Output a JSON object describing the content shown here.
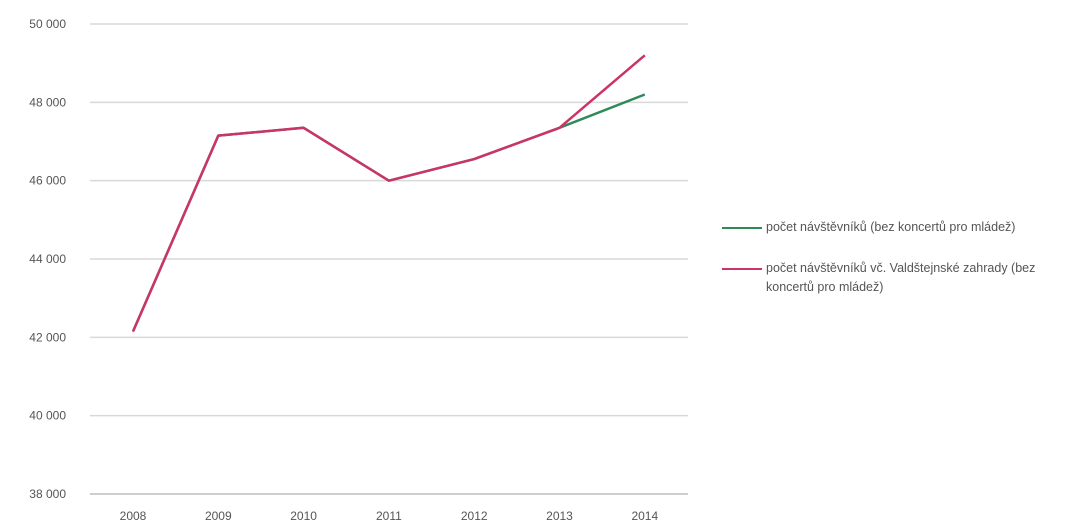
{
  "chart_data": {
    "type": "line",
    "x": [
      "2008",
      "2009",
      "2010",
      "2011",
      "2012",
      "2013",
      "2014"
    ],
    "ylim": [
      38000,
      50000
    ],
    "yticks": [
      38000,
      40000,
      42000,
      44000,
      46000,
      48000,
      50000
    ],
    "ytick_labels": [
      "38 000",
      "40 000",
      "42 000",
      "44 000",
      "46 000",
      "48 000",
      "50 000"
    ],
    "grid": true,
    "legend_position": "right",
    "series": [
      {
        "name": "počet návštěvníků (bez koncertů pro mládež)",
        "color": "#2e8b57",
        "values": [
          42150,
          47150,
          47350,
          46000,
          46550,
          47350,
          48200
        ]
      },
      {
        "name": "počet návštěvníků vč. Valdštejnské zahrady (bez koncertů pro mládež)",
        "color": "#cc3366",
        "values": [
          42150,
          47150,
          47350,
          46000,
          46550,
          47350,
          49200
        ]
      }
    ]
  }
}
